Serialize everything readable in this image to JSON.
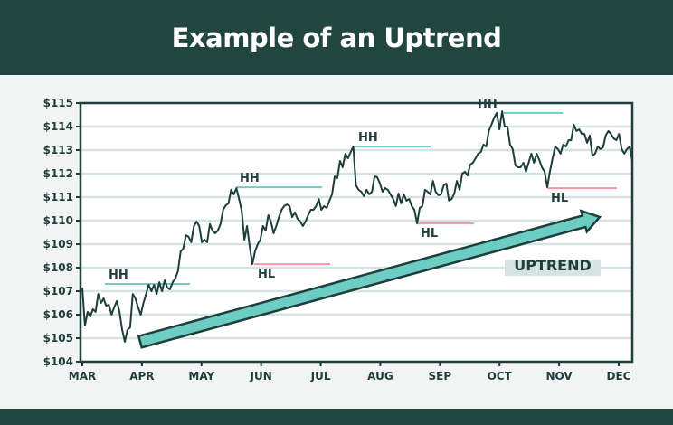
{
  "title": "Example of an Uptrend",
  "colors": {
    "header": "#21463f",
    "line": "#1e3e3c",
    "grid": "#d5e3e1",
    "hh": "#6dcdc4",
    "hl": "#f895a6",
    "arrow": "#6dcdc4",
    "label_bg": "#d5e3e1"
  },
  "chart_data": {
    "type": "line",
    "title": "Example of an Uptrend",
    "xlabel": "",
    "ylabel": "",
    "ylim": [
      104,
      115
    ],
    "y_ticks": [
      "$104",
      "$105",
      "$106",
      "$107",
      "$108",
      "$109",
      "$110",
      "$111",
      "$112",
      "$113",
      "$114",
      "$115"
    ],
    "x_ticks": [
      "MAR",
      "APR",
      "MAY",
      "JUN",
      "JUL",
      "AUG",
      "SEP",
      "OCT",
      "NOV",
      "DEC"
    ],
    "grid": true,
    "values": [
      107.15,
      105.54,
      106.12,
      105.92,
      106.23,
      106.12,
      106.88,
      106.5,
      106.69,
      106.38,
      106.42,
      106.0,
      106.31,
      106.58,
      106.12,
      105.35,
      104.85,
      105.35,
      105.46,
      106.88,
      106.69,
      106.31,
      106.0,
      106.5,
      106.88,
      107.27,
      107.0,
      107.27,
      106.88,
      107.38,
      107.0,
      107.46,
      107.15,
      107.08,
      107.38,
      107.54,
      107.85,
      108.69,
      108.81,
      109.38,
      109.31,
      109.08,
      109.77,
      109.96,
      109.77,
      109.08,
      109.19,
      109.08,
      109.85,
      109.58,
      109.46,
      109.58,
      109.85,
      110.46,
      110.65,
      110.73,
      111.31,
      111.12,
      111.38,
      110.92,
      110.42,
      109.19,
      109.77,
      108.92,
      108.15,
      108.69,
      109.0,
      109.19,
      109.77,
      109.58,
      110.23,
      109.96,
      109.46,
      109.77,
      110.15,
      110.46,
      110.62,
      110.69,
      110.62,
      110.15,
      110.35,
      110.08,
      109.96,
      109.77,
      109.96,
      110.23,
      110.46,
      110.46,
      110.62,
      110.92,
      110.46,
      110.62,
      110.54,
      110.85,
      111.12,
      111.88,
      111.81,
      112.54,
      112.27,
      112.85,
      112.65,
      112.92,
      113.15,
      111.5,
      111.31,
      111.23,
      111.04,
      111.31,
      111.12,
      111.23,
      111.88,
      111.85,
      111.58,
      111.23,
      111.38,
      111.31,
      111.12,
      110.92,
      110.62,
      111.15,
      110.73,
      111.12,
      110.85,
      110.92,
      110.62,
      110.46,
      109.88,
      110.54,
      110.62,
      111.31,
      111.23,
      111.12,
      111.69,
      111.23,
      111.08,
      111.12,
      111.5,
      111.58,
      110.85,
      110.92,
      111.15,
      111.69,
      111.31,
      112.0,
      112.08,
      111.92,
      112.38,
      112.46,
      112.65,
      112.85,
      112.92,
      113.23,
      113.15,
      113.81,
      114.08,
      114.38,
      114.58,
      113.88,
      114.65,
      114.0,
      114.0,
      113.23,
      113.04,
      112.35,
      112.27,
      112.27,
      112.46,
      112.08,
      112.46,
      112.85,
      112.46,
      112.85,
      112.58,
      112.27,
      112.08,
      111.42,
      112.08,
      112.65,
      113.15,
      113.04,
      112.85,
      113.23,
      113.15,
      113.42,
      113.42,
      114.08,
      113.81,
      113.88,
      113.69,
      113.69,
      113.31,
      113.62,
      112.77,
      112.85,
      113.15,
      113.04,
      113.12,
      113.62,
      113.81,
      113.69,
      113.5,
      113.42,
      113.69,
      113.04,
      112.85,
      113.04,
      113.15,
      112.54
    ],
    "annotations": [
      {
        "label": "HH",
        "price": 107.31,
        "type": "HH"
      },
      {
        "label": "HH",
        "price": 111.42,
        "type": "HH"
      },
      {
        "label": "HH",
        "price": 113.15,
        "type": "HH"
      },
      {
        "label": "HH",
        "price": 114.58,
        "type": "HH"
      },
      {
        "label": "HL",
        "price": 108.15,
        "type": "HL"
      },
      {
        "label": "HL",
        "price": 109.88,
        "type": "HL"
      },
      {
        "label": "HL",
        "price": 111.38,
        "type": "HL"
      }
    ],
    "trend_label": "UPTREND"
  }
}
